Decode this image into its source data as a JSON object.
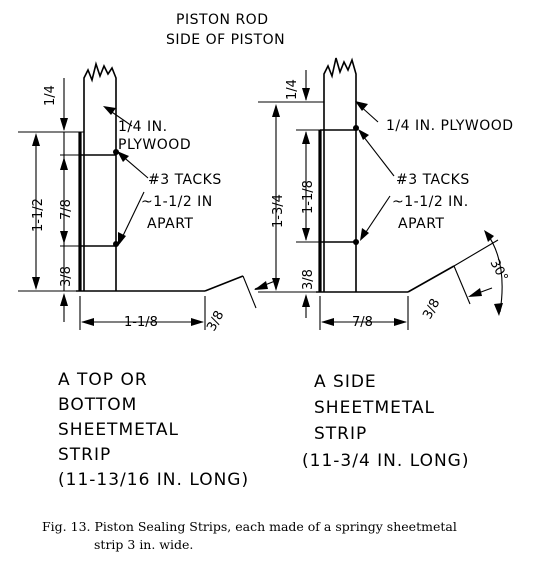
{
  "header": {
    "line1": "PISTON ROD",
    "line2": "SIDE OF PISTON"
  },
  "left_strip": {
    "dim_top": "1/4",
    "dim_total": "1-1/2",
    "dim_spacing": "7/8",
    "dim_bottom": "3/8",
    "dim_flange": "1-1/8",
    "dim_lip": "3/8",
    "label_plywood_1": "1/4 IN.",
    "label_plywood_2": "PLYWOOD",
    "label_tacks_1": "#3 TACKS",
    "label_tacks_2": "~1-1/2 IN",
    "label_tacks_3": "APART",
    "title_1": "A TOP OR",
    "title_2": "BOTTOM",
    "title_3": "SHEETMETAL",
    "title_4": "STRIP",
    "title_5": "(11-13/16 IN. LONG)"
  },
  "right_strip": {
    "dim_top": "1/4",
    "dim_total": "1-3/4",
    "dim_spacing": "1-1/8",
    "dim_bottom": "3/8",
    "dim_flange": "7/8",
    "dim_lip": "3/8",
    "dim_angle": "30°",
    "label_plywood": "1/4 IN. PLYWOOD",
    "label_tacks_1": "#3 TACKS",
    "label_tacks_2": "~1-1/2 IN.",
    "label_tacks_3": "APART",
    "title_1": "A SIDE",
    "title_2": "SHEETMETAL",
    "title_3": "STRIP",
    "title_4": "(11-3/4 IN. LONG)"
  },
  "caption": {
    "line1": "Fig. 13. Piston Sealing Strips, each made of a springy sheetmetal",
    "line2": "strip 3 in. wide."
  }
}
